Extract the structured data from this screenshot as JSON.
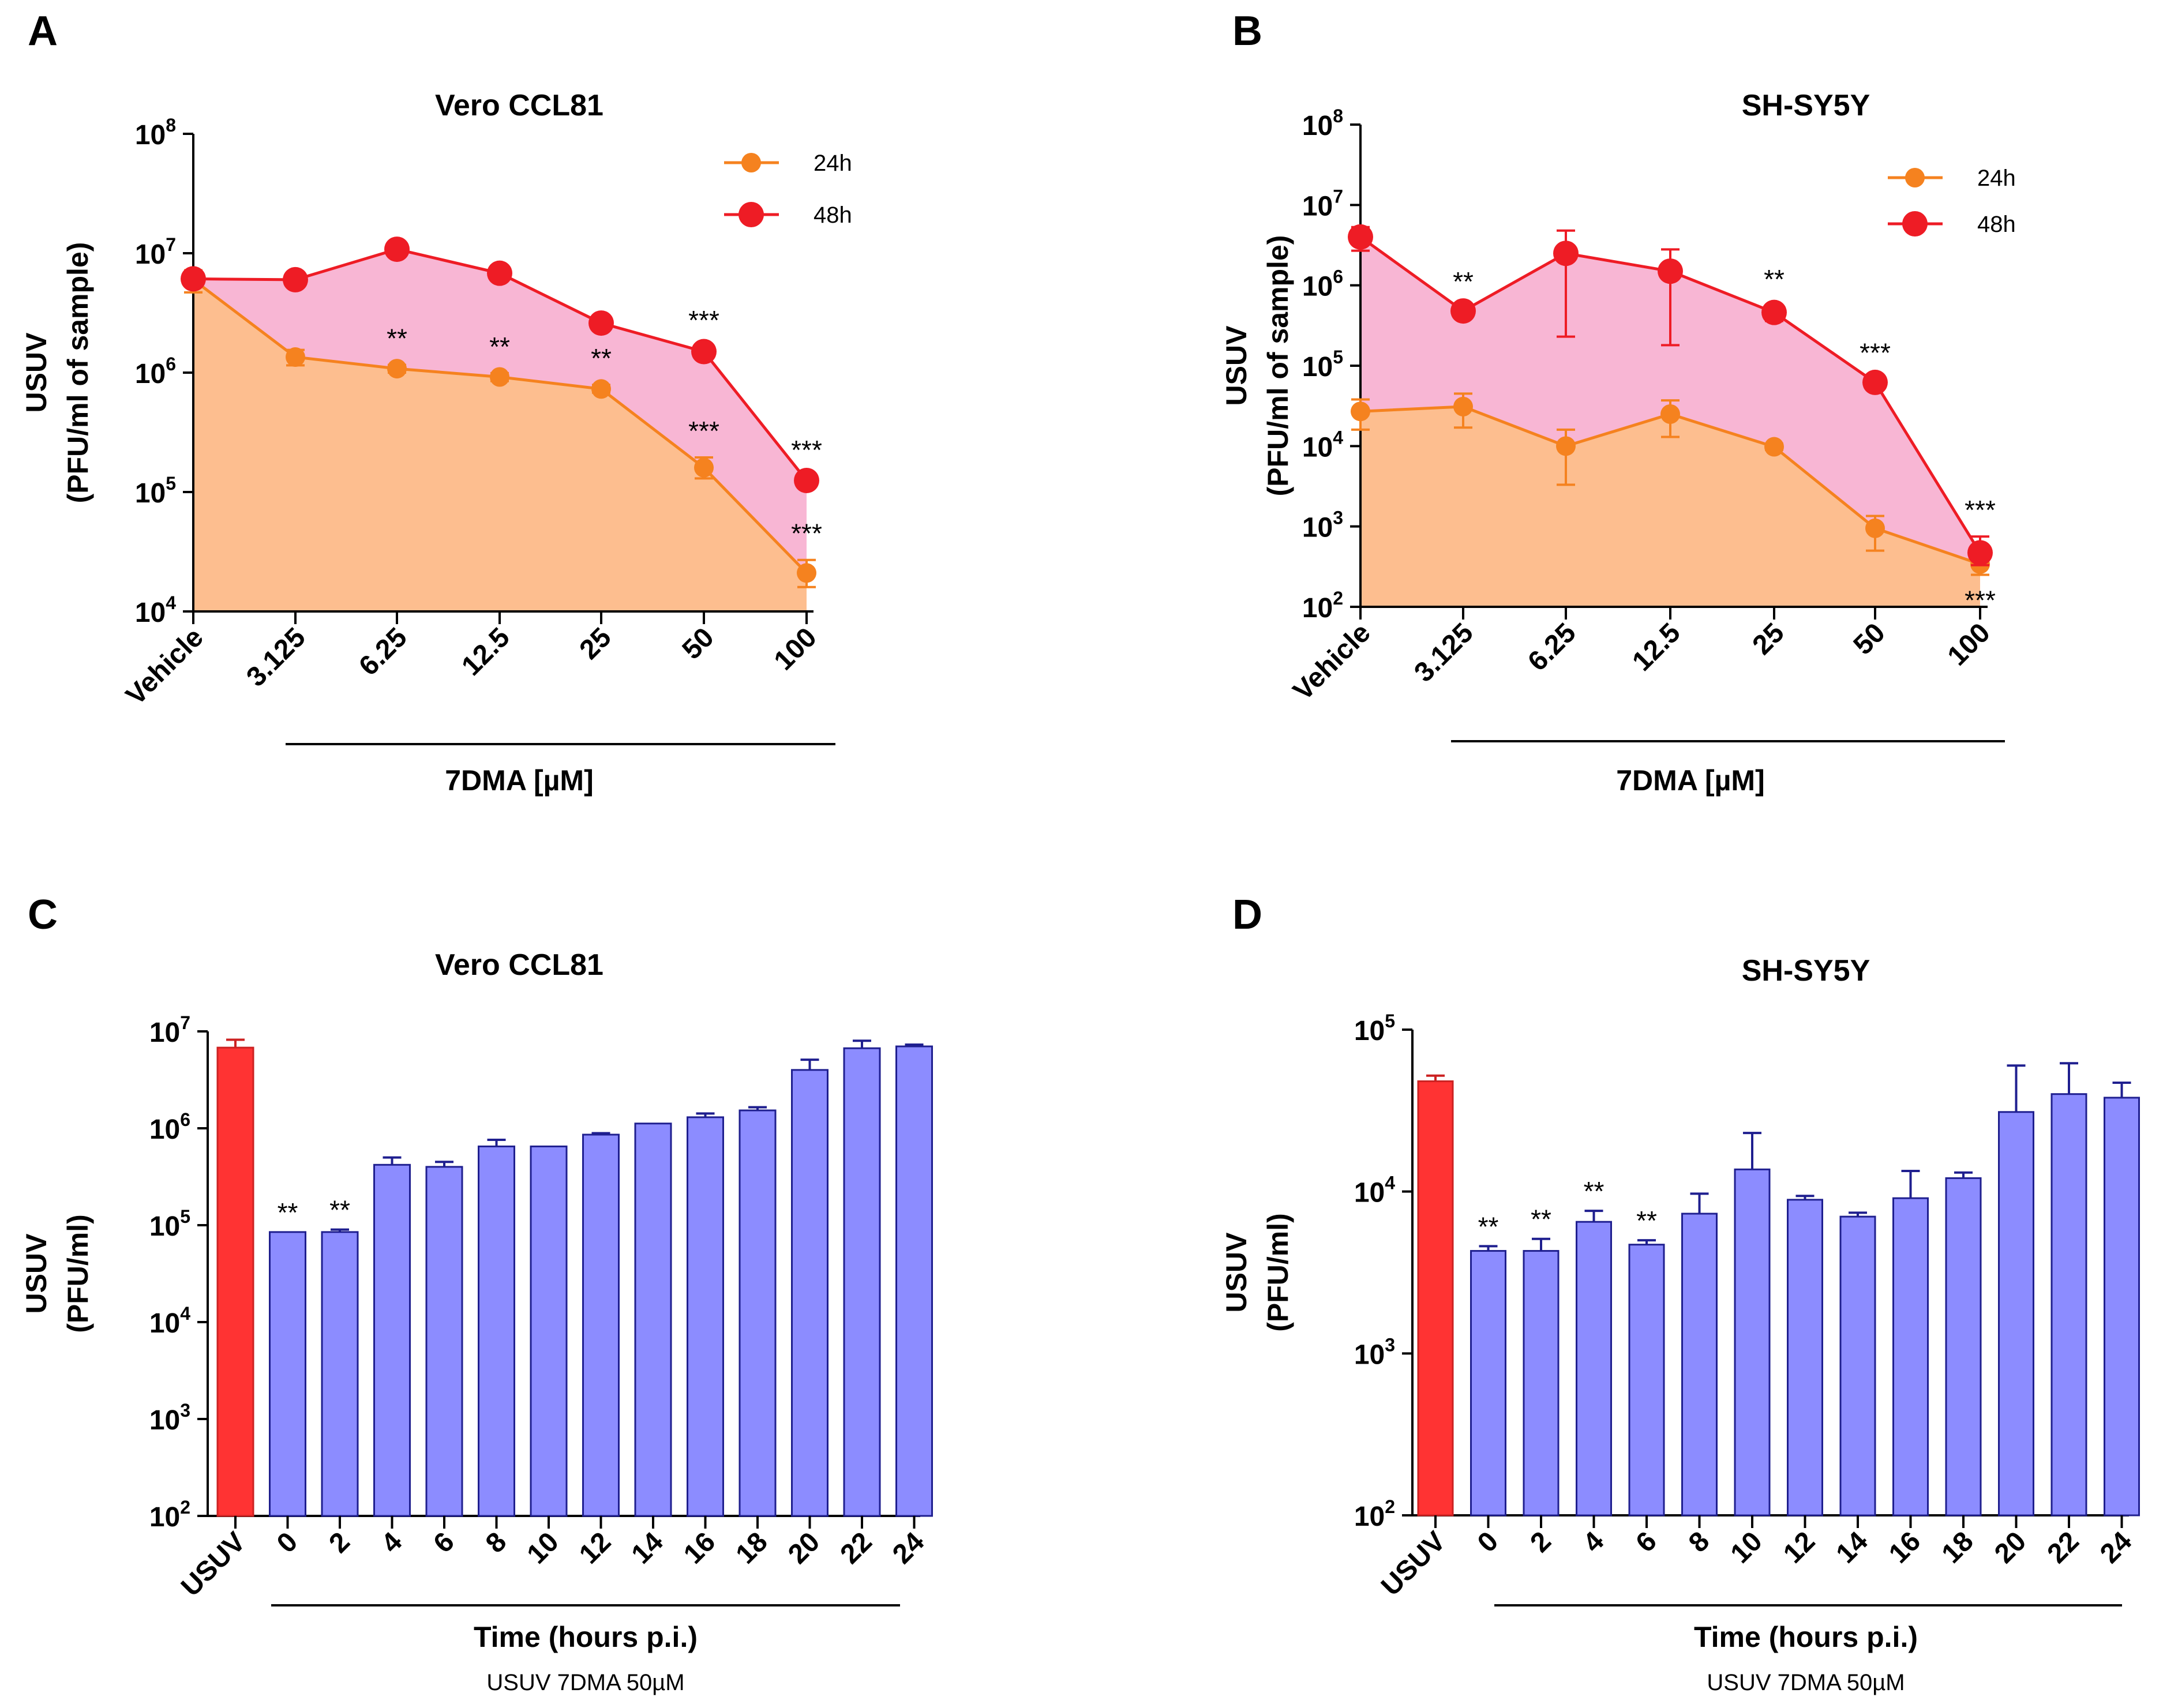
{
  "chart_data": [
    {
      "panel": "A",
      "type": "line",
      "title": "Vero CCL81",
      "ylabel_line1": "USUV",
      "ylabel_line2": "(PFU/ml of sample)",
      "xlabel": "7DMA [µM]",
      "categories": [
        "Vehicle",
        "3.125",
        "6.25",
        "12.5",
        "25",
        "50",
        "100"
      ],
      "yscale": "log",
      "ylim": [
        10000,
        100000000
      ],
      "yticks": [
        10000,
        100000,
        1000000,
        10000000,
        100000000
      ],
      "legend_position": "top-right",
      "series": [
        {
          "name": "24h",
          "color": "#F5821F",
          "fill": "#FDBE8F",
          "values": [
            6000000,
            1350000,
            1080000,
            920000,
            730000,
            160000,
            21000
          ],
          "err_low": [
            4700000,
            1150000,
            1000000,
            850000,
            680000,
            130000,
            16000
          ],
          "err_high": [
            7200000,
            1550000,
            1160000,
            990000,
            790000,
            195000,
            27000
          ],
          "significance": [
            "",
            "",
            "**",
            "**",
            "**",
            "***",
            "***"
          ]
        },
        {
          "name": "48h",
          "color": "#EE1C25",
          "fill": "#F8B6D4",
          "values": [
            6100000,
            6000000,
            10800000,
            6800000,
            2600000,
            1500000,
            125000
          ],
          "err_low": [
            5700000,
            5700000,
            10200000,
            6400000,
            2400000,
            1350000,
            115000
          ],
          "err_high": [
            6600000,
            6300000,
            11400000,
            7200000,
            2800000,
            1650000,
            135000
          ],
          "significance": [
            "",
            "",
            "",
            "",
            "",
            "***",
            "***"
          ]
        }
      ]
    },
    {
      "panel": "B",
      "type": "line",
      "title": "SH-SY5Y",
      "ylabel_line1": "USUV",
      "ylabel_line2": "(PFU/ml of sample)",
      "xlabel": "7DMA [µM]",
      "categories": [
        "Vehicle",
        "3.125",
        "6.25",
        "12.5",
        "25",
        "50",
        "100"
      ],
      "yscale": "log",
      "ylim": [
        100,
        100000000
      ],
      "yticks": [
        100,
        1000,
        10000,
        100000,
        1000000,
        10000000,
        100000000
      ],
      "legend_position": "top-right",
      "series": [
        {
          "name": "24h",
          "color": "#F5821F",
          "fill": "#FDBE8F",
          "values": [
            27000,
            31000,
            10000,
            25000,
            9800,
            950,
            340
          ],
          "err_low": [
            16000,
            17000,
            3300,
            13000,
            9000,
            500,
            250
          ],
          "err_high": [
            38000,
            45000,
            16000,
            37000,
            10700,
            1350,
            430
          ],
          "significance": [
            "",
            "",
            "",
            "",
            "",
            "",
            "***"
          ]
        },
        {
          "name": "48h",
          "color": "#EE1C25",
          "fill": "#F8B6D4",
          "values": [
            4000000,
            480000,
            2500000,
            1500000,
            460000,
            62000,
            470
          ],
          "err_low": [
            2700000,
            440000,
            230000,
            180000,
            360000,
            56000,
            330
          ],
          "err_high": [
            5300000,
            520000,
            4800000,
            2800000,
            560000,
            68000,
            750
          ],
          "significance": [
            "",
            "**",
            "",
            "",
            "**",
            "***",
            "***"
          ]
        }
      ]
    },
    {
      "panel": "C",
      "type": "bar",
      "title": "Vero CCL81",
      "ylabel_line1": "USUV",
      "ylabel_line2": "(PFU/ml)",
      "xlabel": "Time (hours p.i.)",
      "subtitle": "USUV 7DMA 50µM",
      "categories": [
        "USUV",
        "0",
        "2",
        "4",
        "6",
        "8",
        "10",
        "12",
        "14",
        "16",
        "18",
        "20",
        "22",
        "24"
      ],
      "yscale": "log",
      "ylim": [
        100,
        10000000
      ],
      "yticks": [
        100,
        1000,
        10000,
        100000,
        1000000,
        10000000
      ],
      "values": [
        6800000,
        85000,
        85000,
        420000,
        400000,
        650000,
        650000,
        860000,
        1120000,
        1300000,
        1530000,
        4000000,
        6700000,
        7000000
      ],
      "err_high": [
        8200000,
        85000,
        90000,
        500000,
        450000,
        760000,
        650000,
        890000,
        1120000,
        1420000,
        1650000,
        5100000,
        8000000,
        7300000
      ],
      "colors": [
        "#FF3333",
        "#8C8CFF",
        "#8C8CFF",
        "#8C8CFF",
        "#8C8CFF",
        "#8C8CFF",
        "#8C8CFF",
        "#8C8CFF",
        "#8C8CFF",
        "#8C8CFF",
        "#8C8CFF",
        "#8C8CFF",
        "#8C8CFF",
        "#8C8CFF"
      ],
      "significance": [
        "",
        "**",
        "**",
        "",
        "",
        "",
        "",
        "",
        "",
        "",
        "",
        "",
        "",
        ""
      ]
    },
    {
      "panel": "D",
      "type": "bar",
      "title": "SH-SY5Y",
      "ylabel_line1": "USUV",
      "ylabel_line2": "(PFU/ml)",
      "xlabel": "Time (hours p.i.)",
      "subtitle": "USUV 7DMA 50µM",
      "categories": [
        "USUV",
        "0",
        "2",
        "4",
        "6",
        "8",
        "10",
        "12",
        "14",
        "16",
        "18",
        "20",
        "22",
        "24"
      ],
      "yscale": "log",
      "ylim": [
        100,
        100000
      ],
      "yticks": [
        100,
        1000,
        10000,
        100000
      ],
      "values": [
        48000,
        4300,
        4300,
        6500,
        4700,
        7300,
        13700,
        8900,
        7000,
        9100,
        12100,
        31000,
        40000,
        38000
      ],
      "err_high": [
        52000,
        4600,
        5100,
        7600,
        5000,
        9700,
        23000,
        9400,
        7400,
        13400,
        13100,
        60000,
        62000,
        47000
      ],
      "colors": [
        "#FF3333",
        "#8C8CFF",
        "#8C8CFF",
        "#8C8CFF",
        "#8C8CFF",
        "#8C8CFF",
        "#8C8CFF",
        "#8C8CFF",
        "#8C8CFF",
        "#8C8CFF",
        "#8C8CFF",
        "#8C8CFF",
        "#8C8CFF",
        "#8C8CFF"
      ],
      "significance": [
        "",
        "**",
        "**",
        "**",
        "**",
        "",
        "",
        "",
        "",
        "",
        "",
        "",
        "",
        ""
      ]
    }
  ],
  "panel_letters": [
    "A",
    "B",
    "C",
    "D"
  ]
}
